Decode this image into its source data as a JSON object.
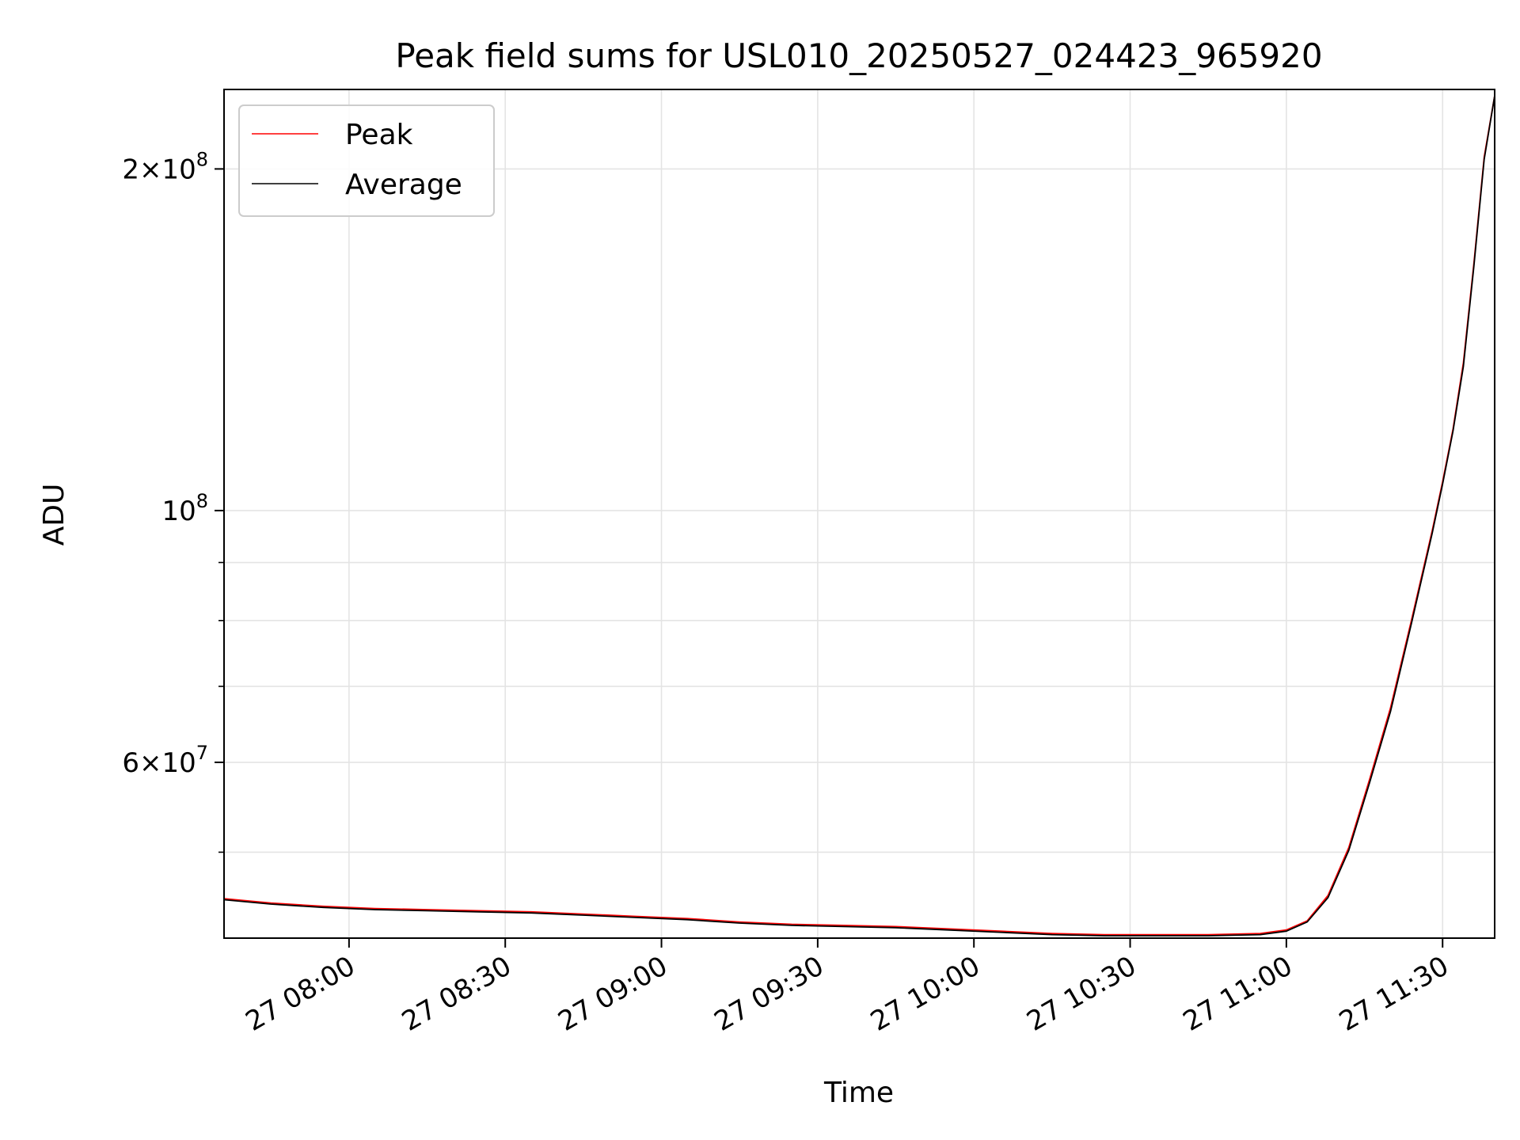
{
  "chart_data": {
    "type": "line",
    "title": "Peak field sums for USL010_20250527_024423_965920",
    "xlabel": "Time",
    "ylabel": "ADU",
    "y_scale": "log",
    "ylim": [
      42000000,
      235000000
    ],
    "xlim": [
      "2025-05-27 07:36",
      "2025-05-27 11:40"
    ],
    "grid": true,
    "legend_position": "top-left",
    "x_ticks": [
      {
        "value": "2025-05-27 08:00",
        "label": "27 08:00"
      },
      {
        "value": "2025-05-27 08:30",
        "label": "27 08:30"
      },
      {
        "value": "2025-05-27 09:00",
        "label": "27 09:00"
      },
      {
        "value": "2025-05-27 09:30",
        "label": "27 09:30"
      },
      {
        "value": "2025-05-27 10:00",
        "label": "27 10:00"
      },
      {
        "value": "2025-05-27 10:30",
        "label": "27 10:30"
      },
      {
        "value": "2025-05-27 11:00",
        "label": "27 11:00"
      },
      {
        "value": "2025-05-27 11:30",
        "label": "27 11:30"
      }
    ],
    "y_major_ticks": [
      {
        "value": 60000000,
        "mantissa": "6",
        "exponent": "7"
      },
      {
        "value": 100000000,
        "mantissa": "",
        "exponent": "8"
      },
      {
        "value": 200000000,
        "mantissa": "2",
        "exponent": "8"
      }
    ],
    "y_minor_ticks": [
      50000000,
      70000000,
      80000000,
      90000000
    ],
    "series": [
      {
        "name": "Peak",
        "color": "#ff0000",
        "x": [
          "2025-05-27 07:36",
          "2025-05-27 07:45",
          "2025-05-27 07:55",
          "2025-05-27 08:05",
          "2025-05-27 08:15",
          "2025-05-27 08:25",
          "2025-05-27 08:35",
          "2025-05-27 08:45",
          "2025-05-27 08:55",
          "2025-05-27 09:05",
          "2025-05-27 09:15",
          "2025-05-27 09:25",
          "2025-05-27 09:35",
          "2025-05-27 09:45",
          "2025-05-27 09:55",
          "2025-05-27 10:05",
          "2025-05-27 10:15",
          "2025-05-27 10:25",
          "2025-05-27 10:35",
          "2025-05-27 10:45",
          "2025-05-27 10:55",
          "2025-05-27 11:00",
          "2025-05-27 11:04",
          "2025-05-27 11:08",
          "2025-05-27 11:12",
          "2025-05-27 11:16",
          "2025-05-27 11:20",
          "2025-05-27 11:24",
          "2025-05-27 11:28",
          "2025-05-27 11:30",
          "2025-05-27 11:32",
          "2025-05-27 11:34",
          "2025-05-27 11:36",
          "2025-05-27 11:38",
          "2025-05-27 11:40"
        ],
        "values": [
          45500000,
          45100000,
          44800000,
          44600000,
          44500000,
          44400000,
          44300000,
          44100000,
          43900000,
          43700000,
          43400000,
          43200000,
          43100000,
          43000000,
          42800000,
          42600000,
          42400000,
          42300000,
          42300000,
          42300000,
          42400000,
          42700000,
          43500000,
          45800000,
          50500000,
          58000000,
          67000000,
          80000000,
          96000000,
          106000000,
          118000000,
          135000000,
          165000000,
          205000000,
          232000000
        ]
      },
      {
        "name": "Average",
        "color": "#000000",
        "x": [
          "2025-05-27 07:36",
          "2025-05-27 07:45",
          "2025-05-27 07:55",
          "2025-05-27 08:05",
          "2025-05-27 08:15",
          "2025-05-27 08:25",
          "2025-05-27 08:35",
          "2025-05-27 08:45",
          "2025-05-27 08:55",
          "2025-05-27 09:05",
          "2025-05-27 09:15",
          "2025-05-27 09:25",
          "2025-05-27 09:35",
          "2025-05-27 09:45",
          "2025-05-27 09:55",
          "2025-05-27 10:05",
          "2025-05-27 10:15",
          "2025-05-27 10:25",
          "2025-05-27 10:35",
          "2025-05-27 10:45",
          "2025-05-27 10:55",
          "2025-05-27 11:00",
          "2025-05-27 11:04",
          "2025-05-27 11:08",
          "2025-05-27 11:12",
          "2025-05-27 11:16",
          "2025-05-27 11:20",
          "2025-05-27 11:24",
          "2025-05-27 11:28",
          "2025-05-27 11:30",
          "2025-05-27 11:32",
          "2025-05-27 11:34",
          "2025-05-27 11:36",
          "2025-05-27 11:38",
          "2025-05-27 11:40"
        ],
        "values": [
          45400000,
          45000000,
          44700000,
          44500000,
          44400000,
          44300000,
          44200000,
          44000000,
          43800000,
          43600000,
          43300000,
          43100000,
          43000000,
          42900000,
          42700000,
          42500000,
          42300000,
          42200000,
          42200000,
          42200000,
          42300000,
          42600000,
          43400000,
          45600000,
          50200000,
          57600000,
          66500000,
          79500000,
          95500000,
          105500000,
          117500000,
          134000000,
          164000000,
          204000000,
          232000000
        ]
      }
    ]
  }
}
